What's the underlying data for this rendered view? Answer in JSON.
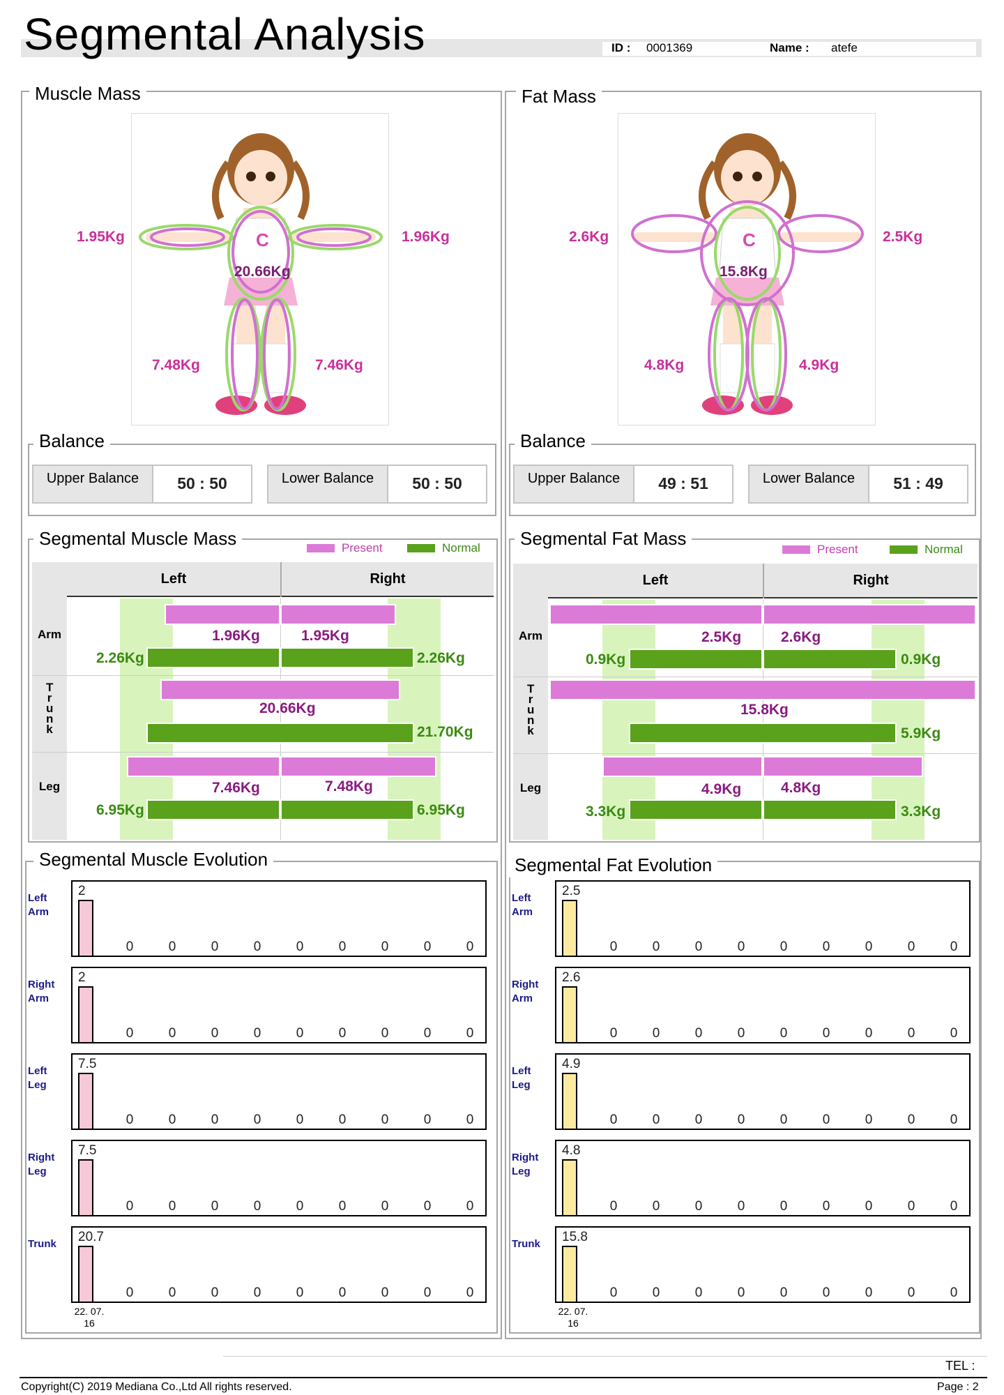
{
  "header": {
    "title": "Segmental Analysis",
    "id_label": "ID :",
    "id_value": "0001369",
    "name_label": "Name :",
    "name_value": "atefe"
  },
  "muscle": {
    "title": "Muscle Mass",
    "left_arm": "1.95Kg",
    "right_arm": "1.96Kg",
    "trunk": "20.66Kg",
    "left_leg": "7.48Kg",
    "right_leg": "7.46Kg",
    "balance": {
      "title": "Balance",
      "upper_label": "Upper Balance",
      "upper_value": "50 : 50",
      "lower_label": "Lower Balance",
      "lower_value": "50 : 50"
    },
    "segmental": {
      "title": "Segmental Muscle Mass",
      "legend_present": "Present",
      "legend_normal": "Normal",
      "col_left": "Left",
      "col_right": "Right",
      "rows": [
        {
          "label": "Arm",
          "present_left": "1.96Kg",
          "present_right": "1.95Kg",
          "normal_left": "2.26Kg",
          "normal_right": "2.26Kg"
        },
        {
          "label": "Trunk",
          "present_center": "20.66Kg",
          "normal_right": "21.70Kg"
        },
        {
          "label": "Leg",
          "present_left": "7.46Kg",
          "present_right": "7.48Kg",
          "normal_left": "6.95Kg",
          "normal_right": "6.95Kg"
        }
      ]
    },
    "evolution": {
      "title": "Segmental Muscle Evolution",
      "date": "22. 07.\n16",
      "rows": [
        {
          "label": "Left\nArm",
          "value": "2",
          "fill": 0.75
        },
        {
          "label": "Right\nArm",
          "value": "2",
          "fill": 0.75
        },
        {
          "label": "Left\nLeg",
          "value": "7.5",
          "fill": 0.75
        },
        {
          "label": "Right\nLeg",
          "value": "7.5",
          "fill": 0.75
        },
        {
          "label": "Trunk",
          "value": "20.7",
          "fill": 0.75
        }
      ],
      "zeros": [
        "0",
        "0",
        "0",
        "0",
        "0",
        "0",
        "0",
        "0",
        "0"
      ]
    }
  },
  "fat": {
    "title": "Fat Mass",
    "left_arm": "2.6Kg",
    "right_arm": "2.5Kg",
    "trunk": "15.8Kg",
    "left_leg": "4.8Kg",
    "right_leg": "4.9Kg",
    "balance": {
      "title": "Balance",
      "upper_label": "Upper Balance",
      "upper_value": "49 : 51",
      "lower_label": "Lower Balance",
      "lower_value": "51 : 49"
    },
    "segmental": {
      "title": "Segmental Fat Mass",
      "legend_present": "Present",
      "legend_normal": "Normal",
      "col_left": "Left",
      "col_right": "Right",
      "rows": [
        {
          "label": "Arm",
          "present_left": "2.5Kg",
          "present_right": "2.6Kg",
          "normal_left": "0.9Kg",
          "normal_right": "0.9Kg"
        },
        {
          "label": "Trunk",
          "present_center": "15.8Kg",
          "normal_right": "5.9Kg"
        },
        {
          "label": "Leg",
          "present_left": "4.9Kg",
          "present_right": "4.8Kg",
          "normal_left": "3.3Kg",
          "normal_right": "3.3Kg"
        }
      ]
    },
    "evolution": {
      "title": "Segmental Fat Evolution",
      "date": "22. 07.\n16",
      "rows": [
        {
          "label": "Left\nArm",
          "value": "2.5",
          "fill": 0.75
        },
        {
          "label": "Right\nArm",
          "value": "2.6",
          "fill": 0.75
        },
        {
          "label": "Left\nLeg",
          "value": "4.9",
          "fill": 0.75
        },
        {
          "label": "Right\nLeg",
          "value": "4.8",
          "fill": 0.75
        },
        {
          "label": "Trunk",
          "value": "15.8",
          "fill": 0.75
        }
      ],
      "zeros": [
        "0",
        "0",
        "0",
        "0",
        "0",
        "0",
        "0",
        "0",
        "0"
      ]
    }
  },
  "colors": {
    "present": "#dc7ad8",
    "normal": "#5aa11c",
    "normal_band": "#d8f4bc",
    "muscle_bar": "#f7c8d8",
    "fat_bar": "#fbeaa0"
  },
  "footer": {
    "tel_label": "TEL :",
    "copyright": "Copyright(C) 2019 Mediana Co.,Ltd All rights reserved.",
    "page": "Page : 2"
  }
}
